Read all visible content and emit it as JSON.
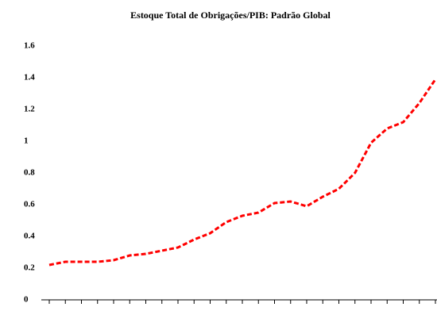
{
  "chart_data": {
    "type": "line",
    "title": "Estoque Total de Obrigações/PIB: Padrão Global",
    "categories": [
      null,
      null,
      null,
      null,
      null,
      null,
      null,
      null,
      null,
      null,
      null,
      null,
      null,
      null,
      null,
      null,
      null,
      null,
      null,
      null,
      null,
      null,
      null,
      null,
      null
    ],
    "series": [
      {
        "color": "#ff0000",
        "values": [
          0.22,
          0.24,
          0.24,
          0.24,
          0.25,
          0.28,
          0.29,
          0.31,
          0.33,
          0.38,
          0.42,
          0.49,
          0.53,
          0.55,
          0.61,
          0.62,
          0.59,
          0.65,
          0.7,
          0.8,
          0.99,
          1.08,
          1.12,
          1.24,
          1.39
        ]
      }
    ],
    "ylim": [
      0,
      1.6
    ],
    "yticks": [
      0,
      0.2,
      0.4,
      0.6,
      0.8,
      1,
      1.2,
      1.4,
      1.6
    ],
    "grid": false,
    "line_style": "dashed"
  }
}
